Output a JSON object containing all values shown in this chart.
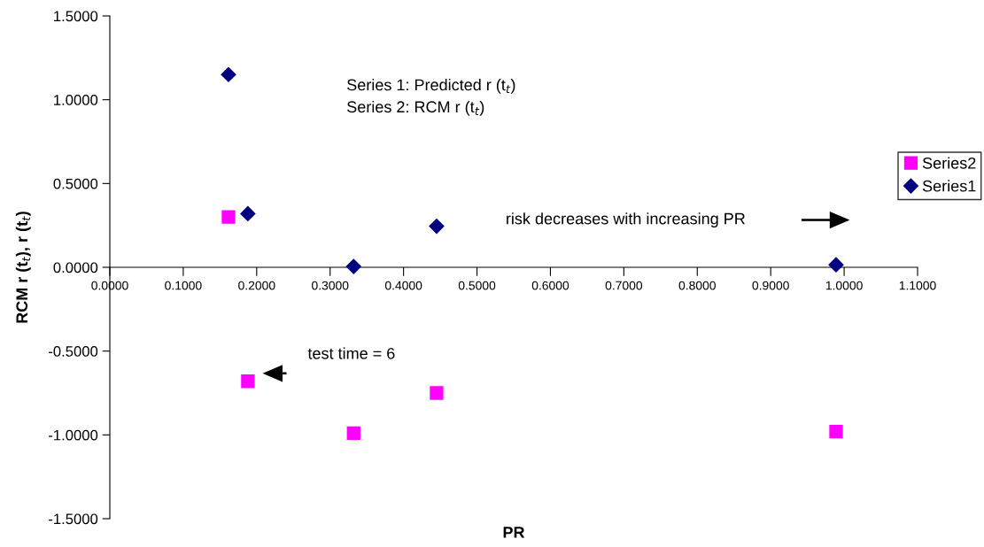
{
  "chart_data": {
    "type": "scatter",
    "xlabel": "PR",
    "ylabel": "RCM r (t$_{t}$), r (t$_{t}$)",
    "x": [
      0.1616,
      0.188,
      0.332,
      0.445,
      0.989
    ],
    "series": [
      {
        "name": "Series2",
        "color": "#ff00ff",
        "marker": "square",
        "values": [
          0.3,
          -0.68,
          -0.99,
          -0.75,
          -0.98
        ]
      },
      {
        "name": "Series1",
        "color": "#000080",
        "marker": "diamond",
        "values": [
          1.15,
          0.32,
          0.005,
          0.245,
          0.015
        ]
      }
    ],
    "xlim": [
      0,
      1.1
    ],
    "xticks": [
      {
        "value": 0,
        "label": "0.0000"
      },
      {
        "value": 0.1,
        "label": "0.1000"
      },
      {
        "value": 0.2,
        "label": "0.2000"
      },
      {
        "value": 0.3,
        "label": "0.3000"
      },
      {
        "value": 0.4,
        "label": "0.4000"
      },
      {
        "value": 0.5,
        "label": "0.5000"
      },
      {
        "value": 0.6,
        "label": "0.6000"
      },
      {
        "value": 0.7,
        "label": "0.7000"
      },
      {
        "value": 0.8,
        "label": "0.8000"
      },
      {
        "value": 0.9,
        "label": "0.9000"
      },
      {
        "value": 1.0,
        "label": "1.0000"
      },
      {
        "value": 1.1,
        "label": "1.1000"
      }
    ],
    "ylim": [
      -1.5,
      1.5
    ],
    "yticks": [
      {
        "value": -1.5,
        "label": "-1.5000"
      },
      {
        "value": -1.0,
        "label": "-1.0000"
      },
      {
        "value": -0.5,
        "label": "-0.5000"
      },
      {
        "value": 0,
        "label": "0.0000"
      },
      {
        "value": 0.5,
        "label": "0.5000"
      },
      {
        "value": 1.0,
        "label": "1.0000"
      },
      {
        "value": 1.5,
        "label": "1.5000"
      }
    ],
    "grid": false,
    "legend": "right",
    "annotations": [
      "Series 1: Predicted r (t$_{t}$)\nSeries 2: RCM r (t$_{t}$)",
      "risk decreases with increasing PR",
      "test time = 6"
    ]
  }
}
